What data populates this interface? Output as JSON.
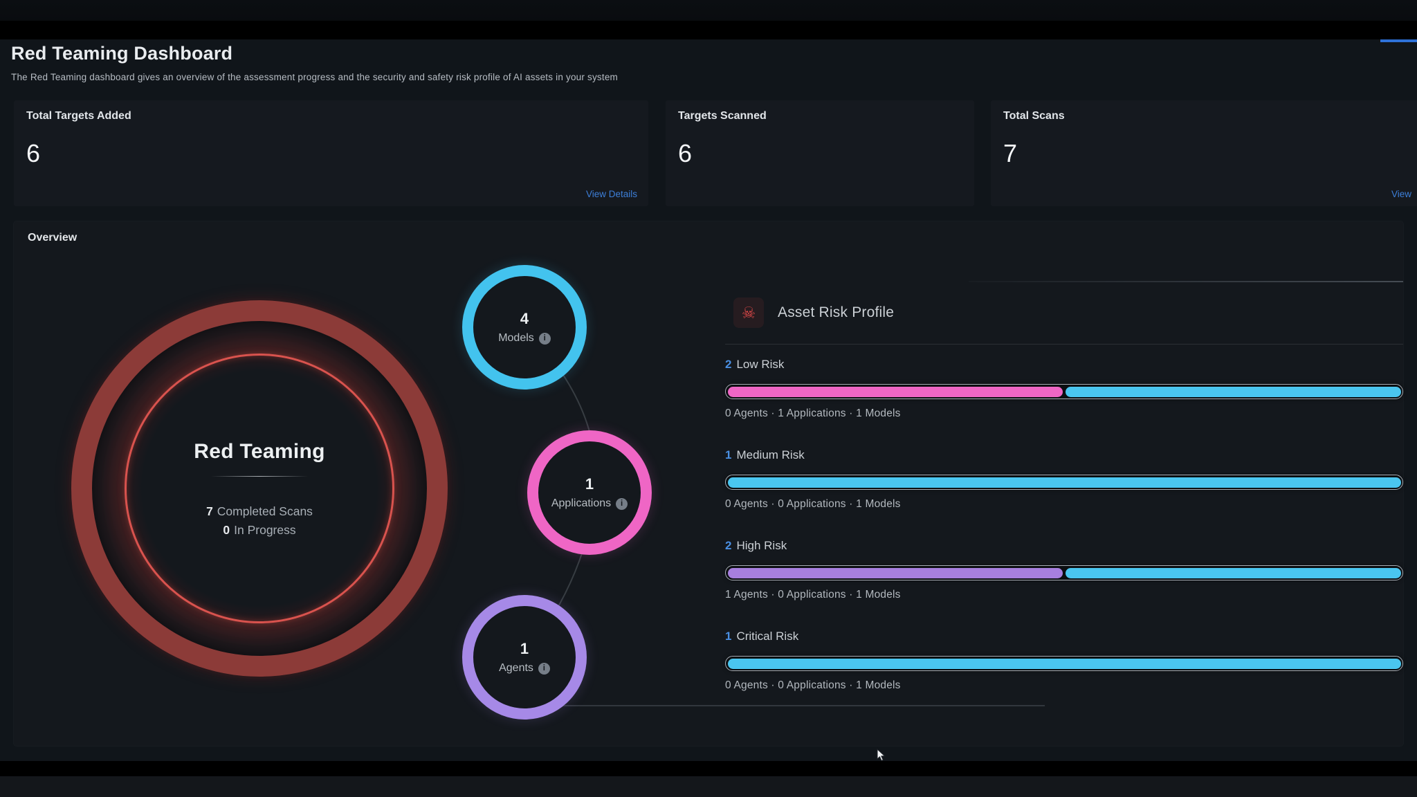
{
  "header": {
    "title": "Red Teaming Dashboard",
    "subtitle": "The Red Teaming dashboard gives an overview of the assessment progress and the security and safety risk profile of AI assets in your system"
  },
  "stat_cards": [
    {
      "label": "Total Targets Added",
      "value": "6",
      "link_label": "View Details"
    },
    {
      "label": "Targets Scanned",
      "value": "6",
      "link_label": ""
    },
    {
      "label": "Total Scans",
      "value": "7",
      "link_label": "View"
    }
  ],
  "overview": {
    "section_title": "Overview",
    "gauge": {
      "title": "Red Teaming",
      "completed_count": "7",
      "completed_label": "Completed Scans",
      "in_progress_count": "0",
      "in_progress_label": "In Progress",
      "ring_color": "#8c3b38",
      "accent_color": "#d9534e"
    },
    "asset_circles": [
      {
        "count": "4",
        "label": "Models",
        "color": "#43c3ee",
        "info_icon": "info"
      },
      {
        "count": "1",
        "label": "Applications",
        "color": "#ef66c5",
        "info_icon": "info"
      },
      {
        "count": "1",
        "label": "Agents",
        "color": "#a689e7",
        "info_icon": "info"
      }
    ]
  },
  "risk_profile": {
    "icon": "skull-crossbones",
    "icon_color": "#dc4848",
    "title": "Asset Risk Profile",
    "rows": [
      {
        "count": "2",
        "label": "Low Risk",
        "segments": [
          {
            "name": "applications",
            "color": "#ef66c5",
            "percent": 50
          },
          {
            "name": "models",
            "color": "#4ac6f0",
            "percent": 50
          }
        ],
        "breakdown": "0 Agents · 1 Applications · 1 Models"
      },
      {
        "count": "1",
        "label": "Medium Risk",
        "segments": [
          {
            "name": "models",
            "color": "#4ac6f0",
            "percent": 100
          }
        ],
        "breakdown": "0 Agents · 0 Applications · 1 Models"
      },
      {
        "count": "2",
        "label": "High Risk",
        "segments": [
          {
            "name": "agents",
            "color": "#a77fdf",
            "percent": 50
          },
          {
            "name": "models",
            "color": "#4ac6f0",
            "percent": 50
          }
        ],
        "breakdown": "1 Agents · 0 Applications · 1 Models"
      },
      {
        "count": "1",
        "label": "Critical Risk",
        "segments": [
          {
            "name": "models",
            "color": "#4ac6f0",
            "percent": 100
          }
        ],
        "breakdown": "0 Agents · 0 Applications · 1 Models"
      }
    ]
  },
  "colors": {
    "count_accent": "#4a8fe2",
    "link": "#3d7fd9",
    "tab_underline": "#2e71d8"
  }
}
